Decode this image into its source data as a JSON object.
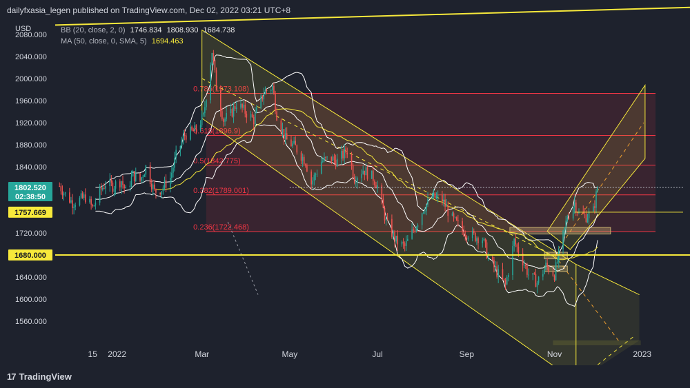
{
  "header": {
    "title": "dailyfxasia_legen published on TradingView.com, Dec 02, 2022 03:21 UTC+8"
  },
  "currency": "USD",
  "legend": {
    "bb": {
      "label": "BB (20, close, 2, 0)",
      "v1": "1746.834",
      "v2": "1808.930",
      "v3": "1684.738"
    },
    "ma": {
      "label": "MA (50, close, 0, SMA, 5)",
      "v1": "1694.463"
    }
  },
  "badges": {
    "price": "1802.520",
    "countdown": "02:38:50",
    "level_1": "1757.669",
    "level_2": "1680.000"
  },
  "footer": {
    "brand": "TradingView",
    "mark": "17"
  },
  "colors": {
    "bg": "#1e222d",
    "up": "#26a69a",
    "down": "#ef5350",
    "yellow": "#f7e93b",
    "fib": "#f23645",
    "badge_price": "#26a69a"
  },
  "chart_data": {
    "type": "candlestick",
    "symbol_unit": "USD",
    "ylim": [
      1520,
      2105
    ],
    "y_ticks": [
      1560,
      1600,
      1640,
      1680,
      1720,
      1760,
      1800,
      1840,
      1880,
      1920,
      1960,
      2000,
      2040,
      2080
    ],
    "y_tick_labels": [
      "1560.000",
      "1600.000",
      "1640.000",
      "1680.000",
      "1720.000",
      "1760.000",
      "1800.000",
      "1840.000",
      "1880.000",
      "1920.000",
      "1960.000",
      "2000.000",
      "2040.000",
      "2080.000"
    ],
    "x_labels": [
      {
        "label": "15",
        "date": "2021-12-15"
      },
      {
        "label": "2022",
        "date": "2022-01-01"
      },
      {
        "label": "Mar",
        "date": "2022-03-01"
      },
      {
        "label": "May",
        "date": "2022-05-01"
      },
      {
        "label": "Jul",
        "date": "2022-07-01"
      },
      {
        "label": "Sep",
        "date": "2022-09-01"
      },
      {
        "label": "Nov",
        "date": "2022-11-01"
      },
      {
        "label": "2023",
        "date": "2023-01-01"
      }
    ],
    "x_range": [
      "2021-11-19",
      "2023-01-16"
    ],
    "fib_levels": [
      {
        "label": "0.786(1973.108)",
        "value": 1973.108
      },
      {
        "label": "0.618(1896.9)",
        "value": 1896.9
      },
      {
        "label": "0.5(1842.775)",
        "value": 1842.775
      },
      {
        "label": "0.382(1789.001)",
        "value": 1789.001
      },
      {
        "label": "0.236(1722.468)",
        "value": 1722.468
      }
    ],
    "horizontal_levels": [
      1757.669,
      1680.0,
      1802.52
    ],
    "price_path": [
      [
        "2021-11-22",
        1805
      ],
      [
        "2021-11-26",
        1790
      ],
      [
        "2021-12-01",
        1775
      ],
      [
        "2021-12-06",
        1780
      ],
      [
        "2021-12-10",
        1785
      ],
      [
        "2021-12-15",
        1765
      ],
      [
        "2021-12-20",
        1795
      ],
      [
        "2021-12-24",
        1810
      ],
      [
        "2021-12-29",
        1805
      ],
      [
        "2022-01-04",
        1815
      ],
      [
        "2022-01-07",
        1795
      ],
      [
        "2022-01-12",
        1825
      ],
      [
        "2022-01-17",
        1815
      ],
      [
        "2022-01-21",
        1840
      ],
      [
        "2022-01-27",
        1795
      ],
      [
        "2022-02-01",
        1800
      ],
      [
        "2022-02-07",
        1820
      ],
      [
        "2022-02-11",
        1860
      ],
      [
        "2022-02-17",
        1898
      ],
      [
        "2022-02-24",
        1905
      ],
      [
        "2022-03-02",
        1930
      ],
      [
        "2022-03-08",
        2050
      ],
      [
        "2022-03-11",
        1985
      ],
      [
        "2022-03-16",
        1925
      ],
      [
        "2022-03-21",
        1935
      ],
      [
        "2022-03-25",
        1955
      ],
      [
        "2022-03-31",
        1940
      ],
      [
        "2022-04-06",
        1925
      ],
      [
        "2022-04-13",
        1975
      ],
      [
        "2022-04-19",
        1985
      ],
      [
        "2022-04-22",
        1935
      ],
      [
        "2022-04-28",
        1890
      ],
      [
        "2022-05-05",
        1875
      ],
      [
        "2022-05-12",
        1850
      ],
      [
        "2022-05-16",
        1810
      ],
      [
        "2022-05-23",
        1850
      ],
      [
        "2022-05-30",
        1855
      ],
      [
        "2022-06-03",
        1850
      ],
      [
        "2022-06-10",
        1870
      ],
      [
        "2022-06-15",
        1820
      ],
      [
        "2022-06-21",
        1835
      ],
      [
        "2022-06-28",
        1820
      ],
      [
        "2022-07-01",
        1805
      ],
      [
        "2022-07-07",
        1740
      ],
      [
        "2022-07-14",
        1705
      ],
      [
        "2022-07-20",
        1695
      ],
      [
        "2022-07-27",
        1730
      ],
      [
        "2022-08-02",
        1765
      ],
      [
        "2022-08-08",
        1785
      ],
      [
        "2022-08-15",
        1780
      ],
      [
        "2022-08-22",
        1745
      ],
      [
        "2022-08-29",
        1725
      ],
      [
        "2022-09-05",
        1715
      ],
      [
        "2022-09-12",
        1710
      ],
      [
        "2022-09-16",
        1675
      ],
      [
        "2022-09-23",
        1645
      ],
      [
        "2022-09-28",
        1625
      ],
      [
        "2022-10-04",
        1705
      ],
      [
        "2022-10-10",
        1670
      ],
      [
        "2022-10-14",
        1645
      ],
      [
        "2022-10-20",
        1630
      ],
      [
        "2022-10-26",
        1660
      ],
      [
        "2022-11-01",
        1645
      ],
      [
        "2022-11-04",
        1680
      ],
      [
        "2022-11-10",
        1750
      ],
      [
        "2022-11-15",
        1775
      ],
      [
        "2022-11-18",
        1755
      ],
      [
        "2022-11-23",
        1750
      ],
      [
        "2022-11-28",
        1760
      ],
      [
        "2022-12-01",
        1802.52
      ]
    ]
  }
}
